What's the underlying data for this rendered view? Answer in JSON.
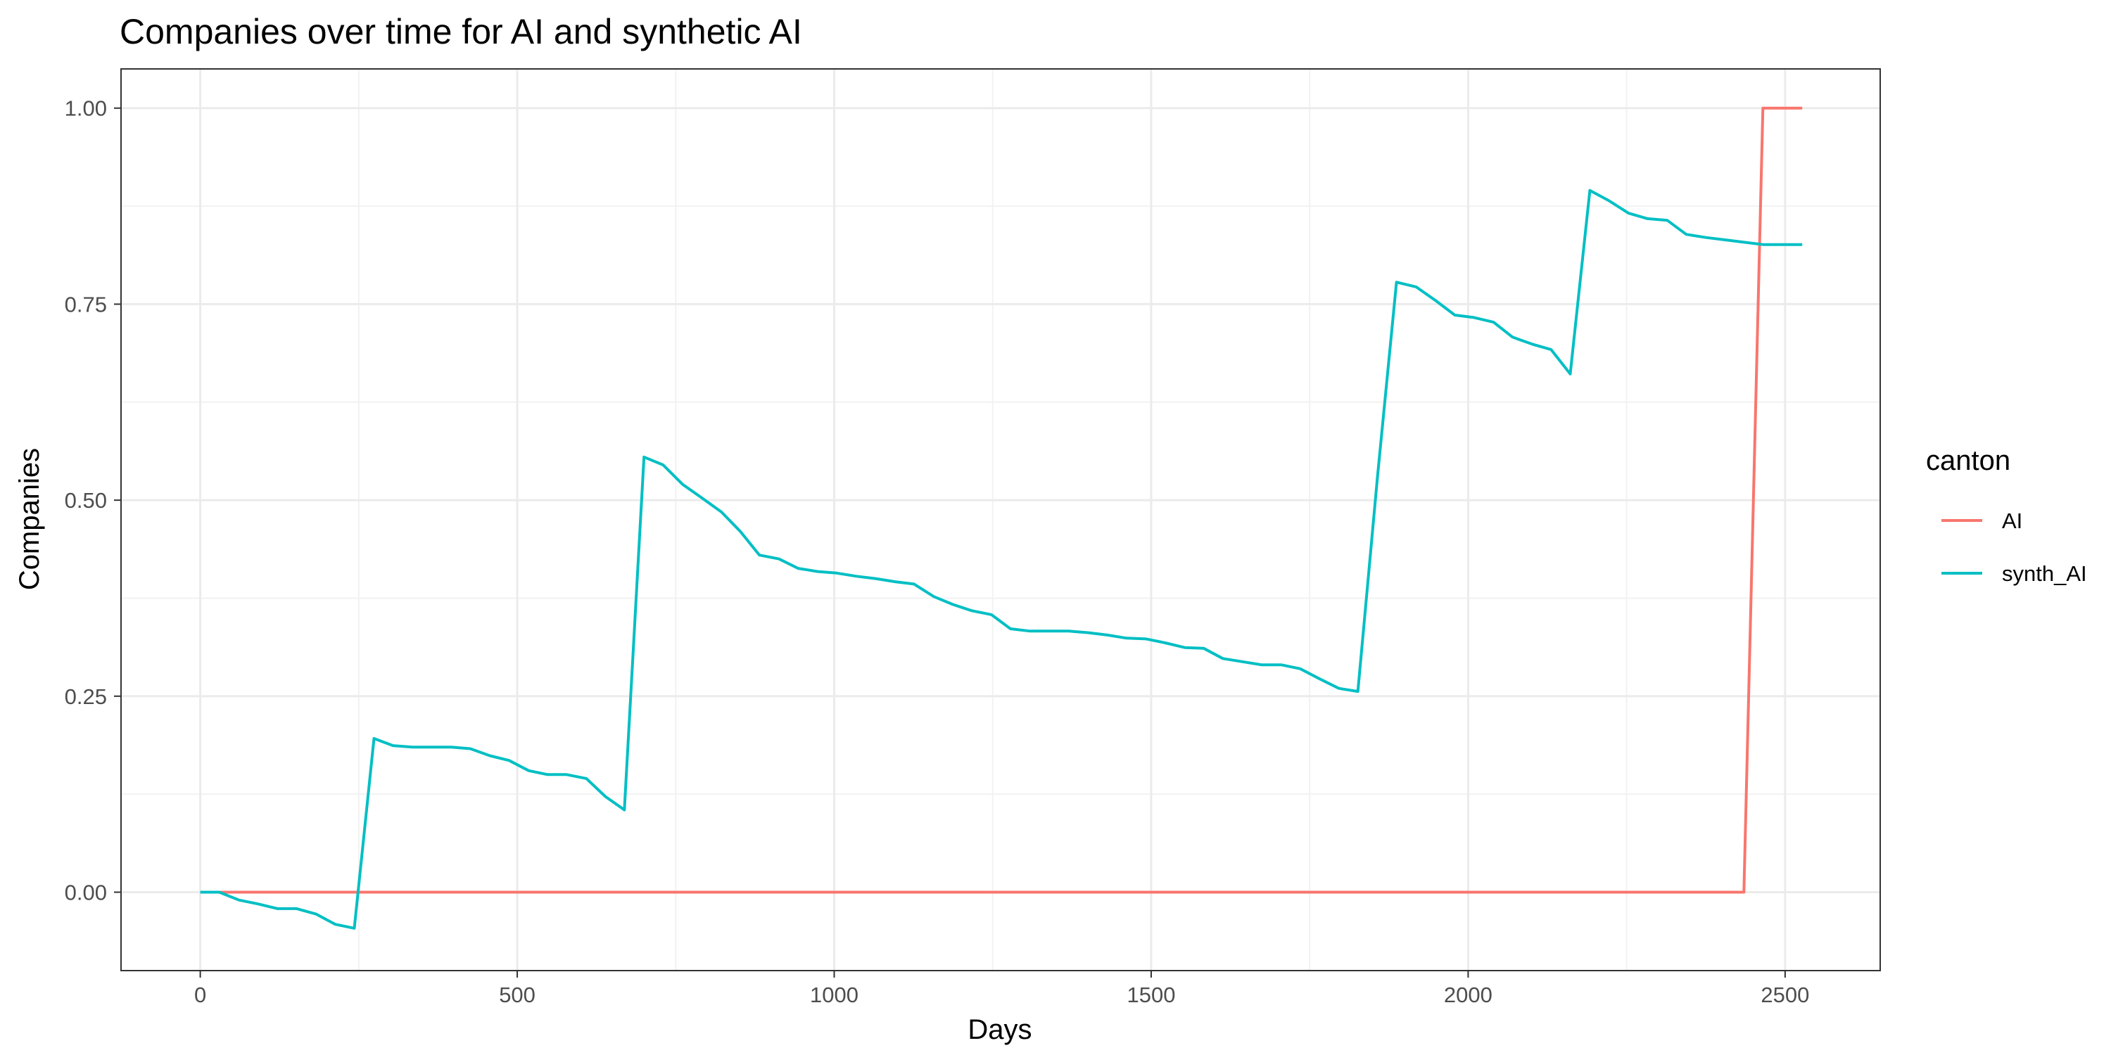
{
  "chart_data": {
    "type": "line",
    "title": "Companies over time for AI and synthetic AI",
    "xlabel": "Days",
    "ylabel": "Companies",
    "xlim": [
      -125,
      2650
    ],
    "ylim": [
      -0.1,
      1.05
    ],
    "x_ticks": [
      0,
      500,
      1000,
      1500,
      2000,
      2500
    ],
    "x_tick_labels": [
      "0",
      "500",
      "1000",
      "1500",
      "2000",
      "2500"
    ],
    "y_ticks": [
      0,
      0.25,
      0.5,
      0.75,
      1
    ],
    "y_tick_labels": [
      "0.00",
      "0.25",
      "0.50",
      "0.75",
      "1.00"
    ],
    "grid": true,
    "legend": {
      "title": "canton",
      "placement": "right"
    },
    "series": [
      {
        "name": "AI",
        "color": "#f8766d",
        "x": [
          0,
          2435,
          2465,
          2527
        ],
        "y": [
          0,
          0,
          1.0,
          1.0
        ]
      },
      {
        "name": "synth_AI",
        "color": "#00bfc4",
        "x": [
          0,
          30,
          61,
          91,
          122,
          152,
          183,
          213,
          243,
          274,
          304,
          335,
          365,
          396,
          426,
          457,
          487,
          518,
          548,
          578,
          609,
          639,
          669,
          700,
          730,
          761,
          791,
          822,
          852,
          882,
          913,
          943,
          974,
          1004,
          1035,
          1065,
          1096,
          1126,
          1157,
          1187,
          1217,
          1248,
          1278,
          1309,
          1339,
          1370,
          1400,
          1431,
          1461,
          1492,
          1522,
          1553,
          1583,
          1613,
          1644,
          1674,
          1705,
          1735,
          1766,
          1796,
          1826,
          1857,
          1887,
          1918,
          1948,
          1979,
          2009,
          2040,
          2070,
          2101,
          2131,
          2161,
          2192,
          2222,
          2253,
          2283,
          2314,
          2344,
          2375,
          2405,
          2435,
          2465,
          2496,
          2527
        ],
        "y": [
          0,
          0,
          -0.01,
          -0.015,
          -0.021,
          -0.021,
          -0.028,
          -0.041,
          -0.046,
          0.196,
          0.187,
          0.185,
          0.185,
          0.185,
          0.183,
          0.174,
          0.168,
          0.155,
          0.15,
          0.15,
          0.145,
          0.122,
          0.105,
          0.555,
          0.545,
          0.52,
          0.503,
          0.485,
          0.46,
          0.43,
          0.425,
          0.413,
          0.409,
          0.407,
          0.403,
          0.4,
          0.396,
          0.393,
          0.377,
          0.367,
          0.359,
          0.354,
          0.336,
          0.333,
          0.333,
          0.333,
          0.331,
          0.328,
          0.324,
          0.323,
          0.318,
          0.312,
          0.311,
          0.298,
          0.294,
          0.29,
          0.29,
          0.285,
          0.272,
          0.26,
          0.256,
          0.53,
          0.778,
          0.772,
          0.755,
          0.736,
          0.733,
          0.727,
          0.708,
          0.699,
          0.692,
          0.661,
          0.895,
          0.882,
          0.866,
          0.859,
          0.857,
          0.839,
          0.835,
          0.832,
          0.829,
          0.826,
          0.826,
          0.826
        ]
      }
    ]
  }
}
